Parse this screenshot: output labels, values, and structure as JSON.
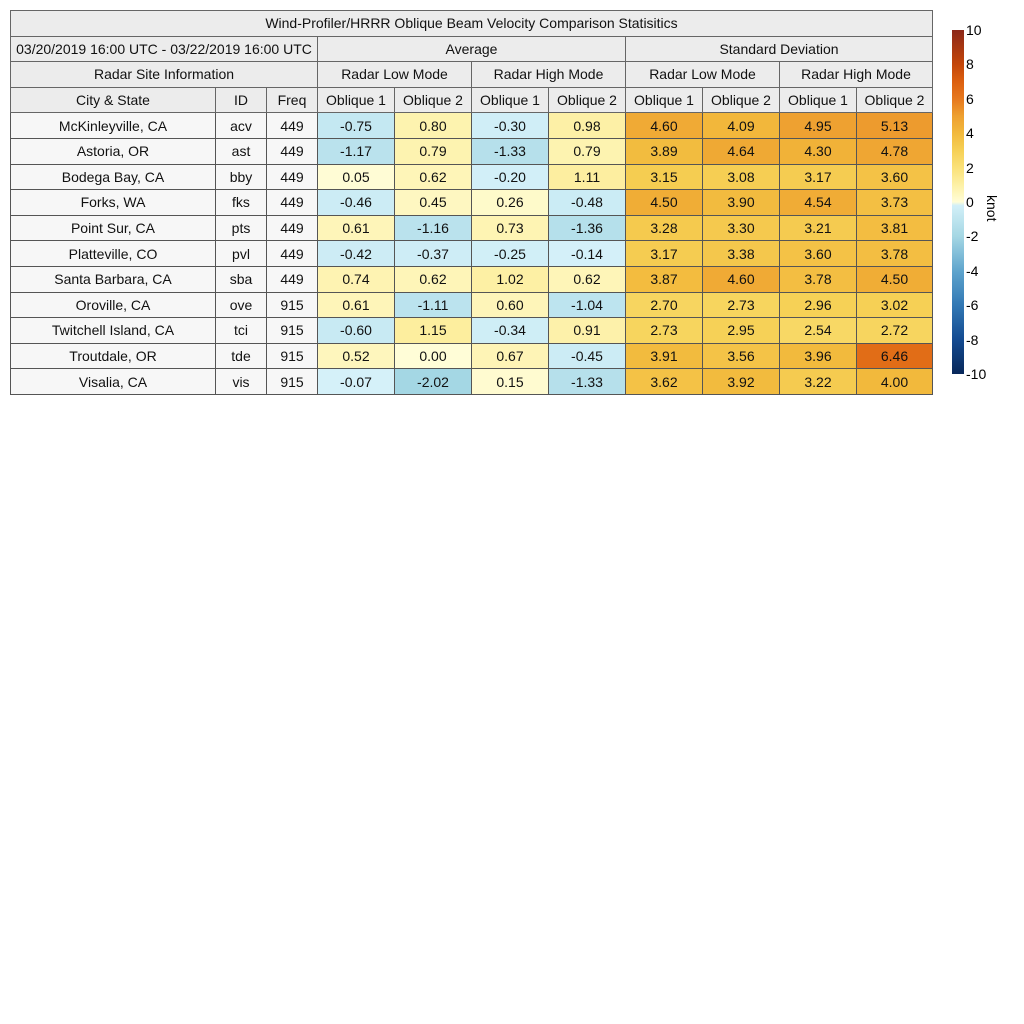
{
  "title": "Wind-Profiler/HRRR Oblique Beam Velocity Comparison Statisitics",
  "date_range": "03/20/2019 16:00 UTC - 03/22/2019 16:00 UTC",
  "group_headers": {
    "average": "Average",
    "std": "Standard Deviation",
    "site_info": "Radar Site Information"
  },
  "modes": {
    "low": "Radar Low Mode",
    "high": "Radar High Mode"
  },
  "columns": {
    "city": "City & State",
    "id": "ID",
    "freq": "Freq",
    "ob1": "Oblique 1",
    "ob2": "Oblique 2"
  },
  "colorbar": {
    "label": "knot",
    "min": -10,
    "max": 10,
    "ticks": [
      "10",
      "8",
      "6",
      "4",
      "2",
      "0",
      "-2",
      "-4",
      "-6",
      "-8",
      "-10"
    ]
  },
  "chart_data": {
    "type": "table",
    "title": "Wind-Profiler/HRRR Oblique Beam Velocity Comparison Statisitics",
    "value_columns": [
      "Average Low Oblique 1",
      "Average Low Oblique 2",
      "Average High Oblique 1",
      "Average High Oblique 2",
      "Std Low Oblique 1",
      "Std Low Oblique 2",
      "Std High Oblique 1",
      "Std High Oblique 2"
    ],
    "rows": [
      {
        "city": "McKinleyville, CA",
        "id": "acv",
        "freq": "449",
        "values": [
          "-0.75",
          "0.80",
          "-0.30",
          "0.98",
          "4.60",
          "4.09",
          "4.95",
          "5.13"
        ]
      },
      {
        "city": "Astoria, OR",
        "id": "ast",
        "freq": "449",
        "values": [
          "-1.17",
          "0.79",
          "-1.33",
          "0.79",
          "3.89",
          "4.64",
          "4.30",
          "4.78"
        ]
      },
      {
        "city": "Bodega Bay, CA",
        "id": "bby",
        "freq": "449",
        "values": [
          "0.05",
          "0.62",
          "-0.20",
          "1.11",
          "3.15",
          "3.08",
          "3.17",
          "3.60"
        ]
      },
      {
        "city": "Forks, WA",
        "id": "fks",
        "freq": "449",
        "values": [
          "-0.46",
          "0.45",
          "0.26",
          "-0.48",
          "4.50",
          "3.90",
          "4.54",
          "3.73"
        ]
      },
      {
        "city": "Point Sur, CA",
        "id": "pts",
        "freq": "449",
        "values": [
          "0.61",
          "-1.16",
          "0.73",
          "-1.36",
          "3.28",
          "3.30",
          "3.21",
          "3.81"
        ]
      },
      {
        "city": "Platteville, CO",
        "id": "pvl",
        "freq": "449",
        "values": [
          "-0.42",
          "-0.37",
          "-0.25",
          "-0.14",
          "3.17",
          "3.38",
          "3.60",
          "3.78"
        ]
      },
      {
        "city": "Santa Barbara, CA",
        "id": "sba",
        "freq": "449",
        "values": [
          "0.74",
          "0.62",
          "1.02",
          "0.62",
          "3.87",
          "4.60",
          "3.78",
          "4.50"
        ]
      },
      {
        "city": "Oroville, CA",
        "id": "ove",
        "freq": "915",
        "values": [
          "0.61",
          "-1.11",
          "0.60",
          "-1.04",
          "2.70",
          "2.73",
          "2.96",
          "3.02"
        ]
      },
      {
        "city": "Twitchell Island, CA",
        "id": "tci",
        "freq": "915",
        "values": [
          "-0.60",
          "1.15",
          "-0.34",
          "0.91",
          "2.73",
          "2.95",
          "2.54",
          "2.72"
        ]
      },
      {
        "city": "Troutdale, OR",
        "id": "tde",
        "freq": "915",
        "values": [
          "0.52",
          "0.00",
          "0.67",
          "-0.45",
          "3.91",
          "3.56",
          "3.96",
          "6.46"
        ]
      },
      {
        "city": "Visalia, CA",
        "id": "vis",
        "freq": "915",
        "values": [
          "-0.07",
          "-2.02",
          "0.15",
          "-1.33",
          "3.62",
          "3.92",
          "3.22",
          "4.00"
        ]
      }
    ]
  }
}
